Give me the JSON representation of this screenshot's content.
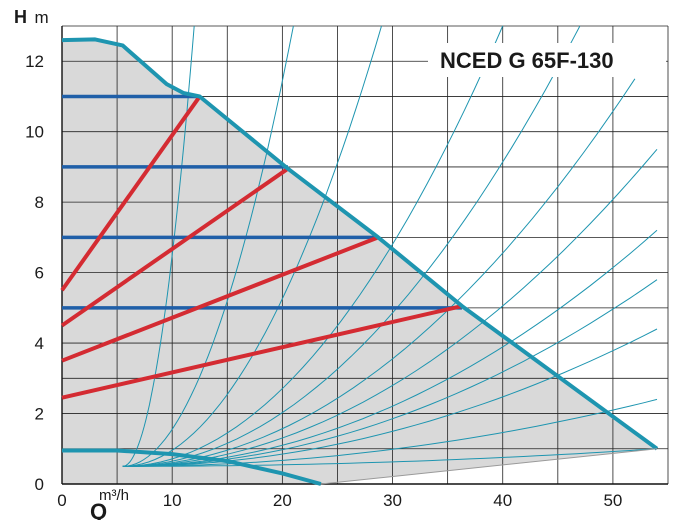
{
  "chart_data": {
    "type": "line",
    "title": "NCED G 65F-130",
    "ylabel": {
      "symbol": "H",
      "unit": "m"
    },
    "xlabel": {
      "symbol": "Q",
      "unit": "m³/h"
    },
    "xlim": [
      0,
      55
    ],
    "ylim": [
      0,
      13
    ],
    "xticks": [
      0,
      10,
      20,
      30,
      40,
      50
    ],
    "yticks": [
      0,
      2,
      4,
      6,
      8,
      10,
      12
    ],
    "grid": true,
    "colors": {
      "envelope": "#1e95b0",
      "area_fill": "#d9d9d9",
      "constant_pressure": "#1f5fa8",
      "proportional_pressure": "#d42b32",
      "system_curves": "#1e95b0",
      "grid": "#222222"
    },
    "envelope": [
      [
        0,
        12.6
      ],
      [
        3,
        12.62
      ],
      [
        5.5,
        12.45
      ],
      [
        7.5,
        11.9
      ],
      [
        9.5,
        11.35
      ],
      [
        11,
        11.1
      ],
      [
        12.5,
        11.0
      ],
      [
        20.5,
        8.95
      ],
      [
        28.7,
        7.0
      ],
      [
        36.3,
        5.05
      ],
      [
        54,
        1.0
      ],
      [
        23.5,
        0.0
      ],
      [
        0,
        0
      ]
    ],
    "low_speed_curve": [
      [
        0,
        0.95
      ],
      [
        5,
        0.95
      ],
      [
        10,
        0.85
      ],
      [
        15,
        0.65
      ],
      [
        20,
        0.3
      ],
      [
        23.5,
        0.0
      ]
    ],
    "constant_pressure": [
      {
        "h": 11,
        "q_max": 12.5
      },
      {
        "h": 9,
        "q_max": 20.5
      },
      {
        "h": 7,
        "q_max": 28.7
      },
      {
        "h": 5,
        "q_max": 36.3
      }
    ],
    "proportional_pressure": [
      {
        "from": [
          0,
          5.5
        ],
        "to": [
          12.5,
          11.0
        ]
      },
      {
        "from": [
          0,
          4.5
        ],
        "to": [
          20.5,
          8.95
        ]
      },
      {
        "from": [
          0,
          3.5
        ],
        "to": [
          28.7,
          7.0
        ]
      },
      {
        "from": [
          0,
          2.45
        ],
        "to": [
          36.3,
          5.05
        ]
      }
    ],
    "system_curves": [
      {
        "q": 12,
        "h": 13
      },
      {
        "q": 21,
        "h": 13
      },
      {
        "q": 29,
        "h": 13
      },
      {
        "q": 40,
        "h": 13
      },
      {
        "q": 47,
        "h": 13
      },
      {
        "q": 52,
        "h": 11.5
      },
      {
        "q": 54,
        "h": 9.5
      },
      {
        "q": 54,
        "h": 7.2
      },
      {
        "q": 54,
        "h": 5.8
      },
      {
        "q": 54,
        "h": 4.4
      },
      {
        "q": 54,
        "h": 2.4
      },
      {
        "q": 54,
        "h": 1.0
      }
    ]
  }
}
